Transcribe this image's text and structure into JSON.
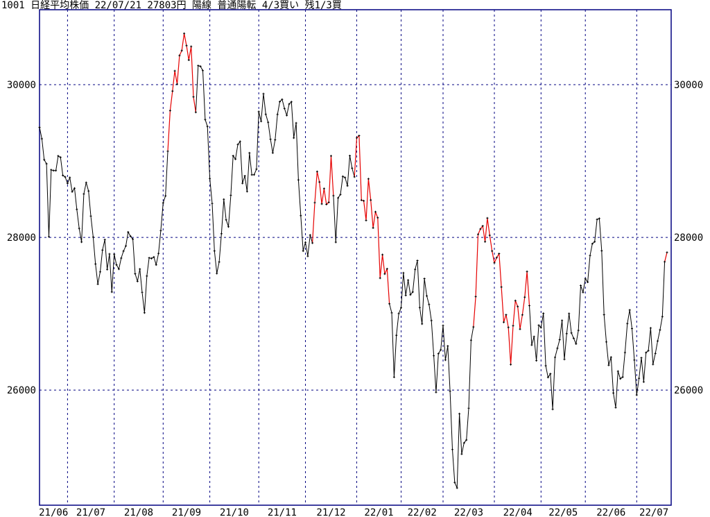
{
  "header": {
    "code": "1001",
    "name": "日経平均株価",
    "date": "22/07/21",
    "price": "27803円",
    "candle": "陽線",
    "signal": "普通陽転",
    "position": "4/3買い",
    "remaining": "残1/3買",
    "full_title": "1001 日経平均株価 22/07/21 27803円 陽線 普通陽転    4/3買い 残1/3買"
  },
  "colors": {
    "grid": "#000080",
    "line": "#000000",
    "bull_signal": "#e60000",
    "background": "#ffffff",
    "text": "#000000"
  },
  "chart_data": {
    "type": "line",
    "title": "日経平均株価 daily close",
    "marker": "+",
    "ylabel": "",
    "xlabel": "",
    "grid": "dashed",
    "legend": "none",
    "y_ticks": [
      26000,
      28000,
      30000
    ],
    "ylim": [
      24492,
      30982
    ],
    "x_labels": [
      "21/06",
      "21/07",
      "21/08",
      "21/09",
      "21/10",
      "21/11",
      "21/12",
      "22/01",
      "22/02",
      "22/03",
      "22/04",
      "22/05",
      "22/06",
      "22/07"
    ],
    "monthly_values": [
      [
        29441,
        29291,
        29018,
        28964,
        28010,
        28884,
        28875,
        28875,
        29066,
        29048,
        28812,
        28791
      ],
      [
        28707,
        28783,
        28598,
        28643,
        28366,
        28118,
        27940,
        28569,
        28718,
        28608,
        28279,
        28003,
        27652,
        27388,
        27548,
        27833,
        27970,
        27581,
        27782,
        27284
      ],
      [
        27781,
        27641,
        27584,
        27728,
        27820,
        27888,
        28070,
        28015,
        27977,
        27523,
        27424,
        27585,
        27281,
        27013,
        27494,
        27732,
        27724,
        27742,
        27641,
        27789,
        28090
      ],
      [
        28451,
        28544,
        29128,
        29660,
        29916,
        30181,
        30008,
        30382,
        30447,
        30670,
        30512,
        30323,
        30500,
        29840,
        29639,
        30249,
        30240,
        30184,
        29544,
        29453
      ],
      [
        28771,
        28444,
        27822,
        27528,
        27678,
        28049,
        28499,
        28231,
        28140,
        28551,
        29069,
        29025,
        29216,
        29256,
        28709,
        28805,
        28601,
        29106,
        28820,
        28821,
        28893
      ],
      [
        29647,
        29521,
        29881,
        29612,
        29507,
        29286,
        29107,
        29278,
        29610,
        29777,
        29808,
        29688,
        29599,
        29746,
        29775,
        29303,
        29499,
        28752,
        28284,
        27822
      ],
      [
        27935,
        27754,
        28030,
        27927,
        28455,
        28861,
        28725,
        28438,
        28640,
        28432,
        28460,
        29066,
        28546,
        27937,
        28517,
        28562,
        28799,
        28783,
        28676,
        29069,
        28906,
        28792
      ],
      [
        29302,
        29332,
        28488,
        28479,
        28222,
        28766,
        28489,
        28124,
        28334,
        28257,
        27467,
        27773,
        27522,
        27588,
        27131,
        27011,
        26170,
        26717,
        27002
      ],
      [
        27078,
        27534,
        27241,
        27440,
        27249,
        27285,
        27580,
        27696,
        27080,
        26866,
        27460,
        27233,
        27122,
        26911,
        26450,
        25971,
        26477,
        26527
      ],
      [
        26845,
        26394,
        26577,
        25985,
        25221,
        24790,
        24718,
        25690,
        25163,
        25308,
        25346,
        25762,
        26653,
        26827,
        27224,
        28040,
        28110,
        28150,
        27944,
        28252,
        28027,
        27821
      ],
      [
        27666,
        27736,
        27787,
        27350,
        26889,
        26986,
        26821,
        26335,
        26843,
        27172,
        27093,
        26799,
        26985,
        27217,
        27553,
        27105,
        26591,
        26700,
        26386,
        26848
      ],
      [
        26819,
        27004,
        26319,
        26167,
        26214,
        25749,
        26428,
        26547,
        26660,
        26911,
        26403,
        26739,
        27002,
        26748,
        26678,
        26605,
        26782,
        27369,
        27280
      ],
      [
        27458,
        27414,
        27762,
        27916,
        27944,
        28234,
        28247,
        27824,
        26987,
        26630,
        26326,
        26431,
        25963,
        25771,
        26246,
        26149,
        26171,
        26492,
        26871,
        27049,
        26805,
        26393
      ],
      [
        25936,
        26154,
        26423,
        26108,
        26491,
        26517,
        26812,
        26337,
        26479,
        26643,
        26788,
        26962,
        27680,
        27803
      ]
    ],
    "red_segment_ranges": [
      [
        56,
        67
      ],
      [
        118,
        126
      ],
      [
        136,
        150
      ],
      [
        187,
        210
      ],
      [
        269,
        269
      ]
    ]
  }
}
